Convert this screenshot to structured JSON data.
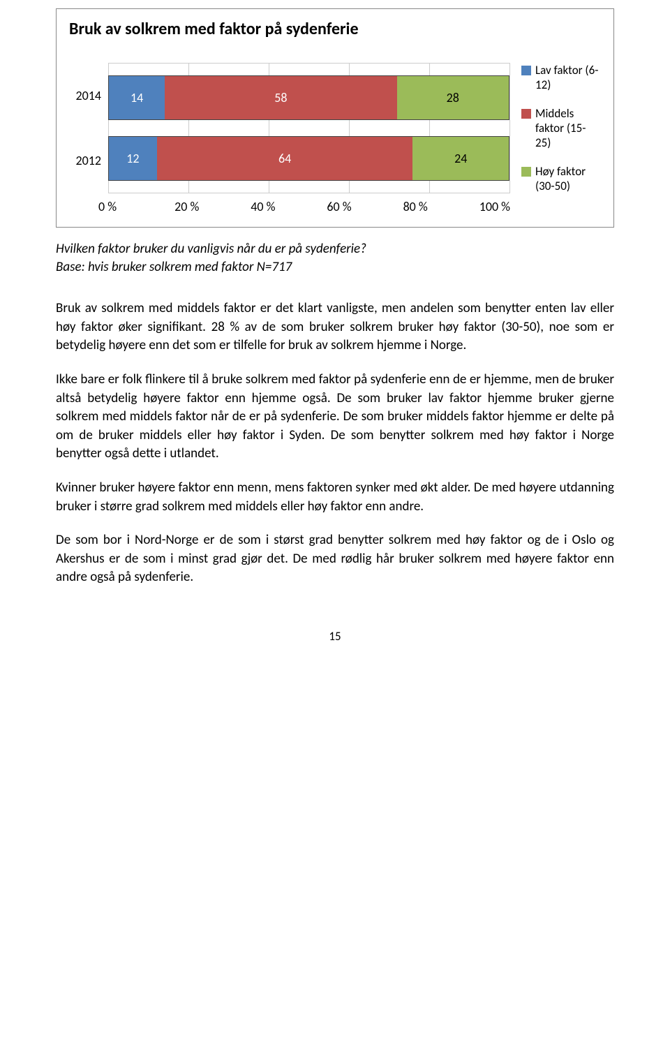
{
  "chart": {
    "title": "Bruk av solkrem med faktor på sydenferie",
    "type": "stacked-bar-horizontal",
    "categories": [
      "2014",
      "2012"
    ],
    "series": [
      {
        "label": "Lav faktor (6-12)",
        "color": "#4f81bd"
      },
      {
        "label": "Middels faktor (15-25)",
        "color": "#c0504d"
      },
      {
        "label": "Høy faktor (30-50)",
        "color": "#9bbb59"
      }
    ],
    "rows": [
      {
        "cat": "2014",
        "values": [
          14,
          58,
          28
        ]
      },
      {
        "cat": "2012",
        "values": [
          12,
          64,
          24
        ]
      }
    ],
    "xticks": [
      "0 %",
      "20 %",
      "40 %",
      "60 %",
      "80 %",
      "100 %"
    ],
    "xlim": [
      0,
      100
    ],
    "border_color": "#888888",
    "grid_color": "#cccccc",
    "background_color": "#ffffff",
    "title_fontsize": 24,
    "label_fontsize": 18
  },
  "caption": {
    "line1": "Hvilken faktor bruker du vanligvis når du er på sydenferie?",
    "line2": "Base: hvis bruker solkrem med faktor N=717"
  },
  "paragraphs": {
    "p1": "Bruk av solkrem med middels faktor er det klart vanligste, men andelen som benytter enten lav eller høy faktor øker signifikant. 28 % av de som bruker solkrem bruker høy faktor (30-50), noe som er betydelig høyere enn det som er tilfelle for bruk av solkrem hjemme i Norge.",
    "p2": "Ikke bare er folk flinkere til å bruke solkrem med faktor på sydenferie enn de er hjemme, men de bruker altså betydelig høyere faktor enn hjemme også. De som bruker lav faktor hjemme bruker gjerne solkrem med middels faktor når de er på sydenferie. De som bruker middels faktor hjemme er delte på om de bruker middels eller høy faktor i Syden. De som benytter solkrem med høy faktor i Norge benytter også dette i utlandet.",
    "p3": "Kvinner bruker høyere faktor enn menn, mens faktoren synker med økt alder. De med høyere utdanning bruker i større grad solkrem med middels eller høy faktor enn andre.",
    "p4": "De som bor i Nord-Norge er de som i størst grad benytter solkrem med høy faktor og de i Oslo og Akershus er de som i minst grad gjør det. De med rødlig hår bruker solkrem med høyere faktor enn andre også på sydenferie."
  },
  "page_number": "15"
}
